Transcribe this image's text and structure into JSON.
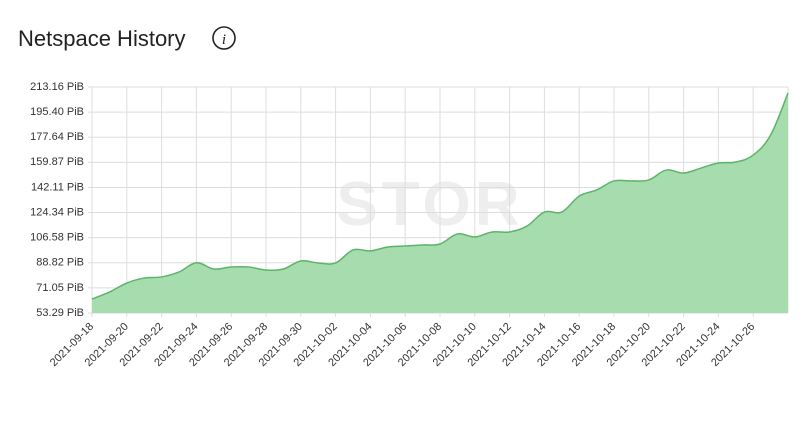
{
  "chart_data": {
    "type": "area",
    "title": "Netspace History",
    "watermark": "STOR",
    "x": [
      "2021-09-18",
      "2021-09-19",
      "2021-09-20",
      "2021-09-21",
      "2021-09-22",
      "2021-09-23",
      "2021-09-24",
      "2021-09-25",
      "2021-09-26",
      "2021-09-27",
      "2021-09-28",
      "2021-09-29",
      "2021-09-30",
      "2021-10-01",
      "2021-10-02",
      "2021-10-03",
      "2021-10-04",
      "2021-10-05",
      "2021-10-06",
      "2021-10-07",
      "2021-10-08",
      "2021-10-09",
      "2021-10-10",
      "2021-10-11",
      "2021-10-12",
      "2021-10-13",
      "2021-10-14",
      "2021-10-15",
      "2021-10-16",
      "2021-10-17",
      "2021-10-18",
      "2021-10-19",
      "2021-10-20",
      "2021-10-21",
      "2021-10-22",
      "2021-10-23",
      "2021-10-24",
      "2021-10-25",
      "2021-10-26",
      "2021-10-27",
      "2021-10-28"
    ],
    "values": [
      63.2,
      68.1,
      74.5,
      78,
      78.8,
      82.3,
      88.8,
      84.4,
      85.8,
      85.8,
      83.7,
      84.4,
      90.1,
      88.7,
      88.7,
      97.9,
      97.2,
      100,
      100.7,
      101.4,
      102.1,
      109.2,
      107.1,
      110.6,
      110.6,
      114.8,
      124.7,
      124.7,
      136,
      140.3,
      146.7,
      146.7,
      147.4,
      154.4,
      152.3,
      155.8,
      159.4,
      160.1,
      165,
      179.2,
      208.9
    ],
    "color": "#a6dcae",
    "line_color": "#5cb46a",
    "xticks": [
      "2021-09-18",
      "2021-09-20",
      "2021-09-22",
      "2021-09-24",
      "2021-09-26",
      "2021-09-28",
      "2021-09-30",
      "2021-10-02",
      "2021-10-04",
      "2021-10-06",
      "2021-10-08",
      "2021-10-10",
      "2021-10-12",
      "2021-10-14",
      "2021-10-16",
      "2021-10-18",
      "2021-10-20",
      "2021-10-22",
      "2021-10-24",
      "2021-10-26"
    ],
    "ylim": [
      53.29,
      213.16
    ],
    "yticks": [
      {
        "value": 53.29,
        "label": "53.29 PiB"
      },
      {
        "value": 71.05,
        "label": "71.05 PiB"
      },
      {
        "value": 88.82,
        "label": "88.82 PiB"
      },
      {
        "value": 106.58,
        "label": "106.58 PiB"
      },
      {
        "value": 124.34,
        "label": "124.34 PiB"
      },
      {
        "value": 142.11,
        "label": "142.11 PiB"
      },
      {
        "value": 159.87,
        "label": "159.87 PiB"
      },
      {
        "value": 177.64,
        "label": "177.64 PiB"
      },
      {
        "value": 195.4,
        "label": "195.40 PiB"
      },
      {
        "value": 213.16,
        "label": "213.16 PiB"
      }
    ],
    "grid": true
  }
}
